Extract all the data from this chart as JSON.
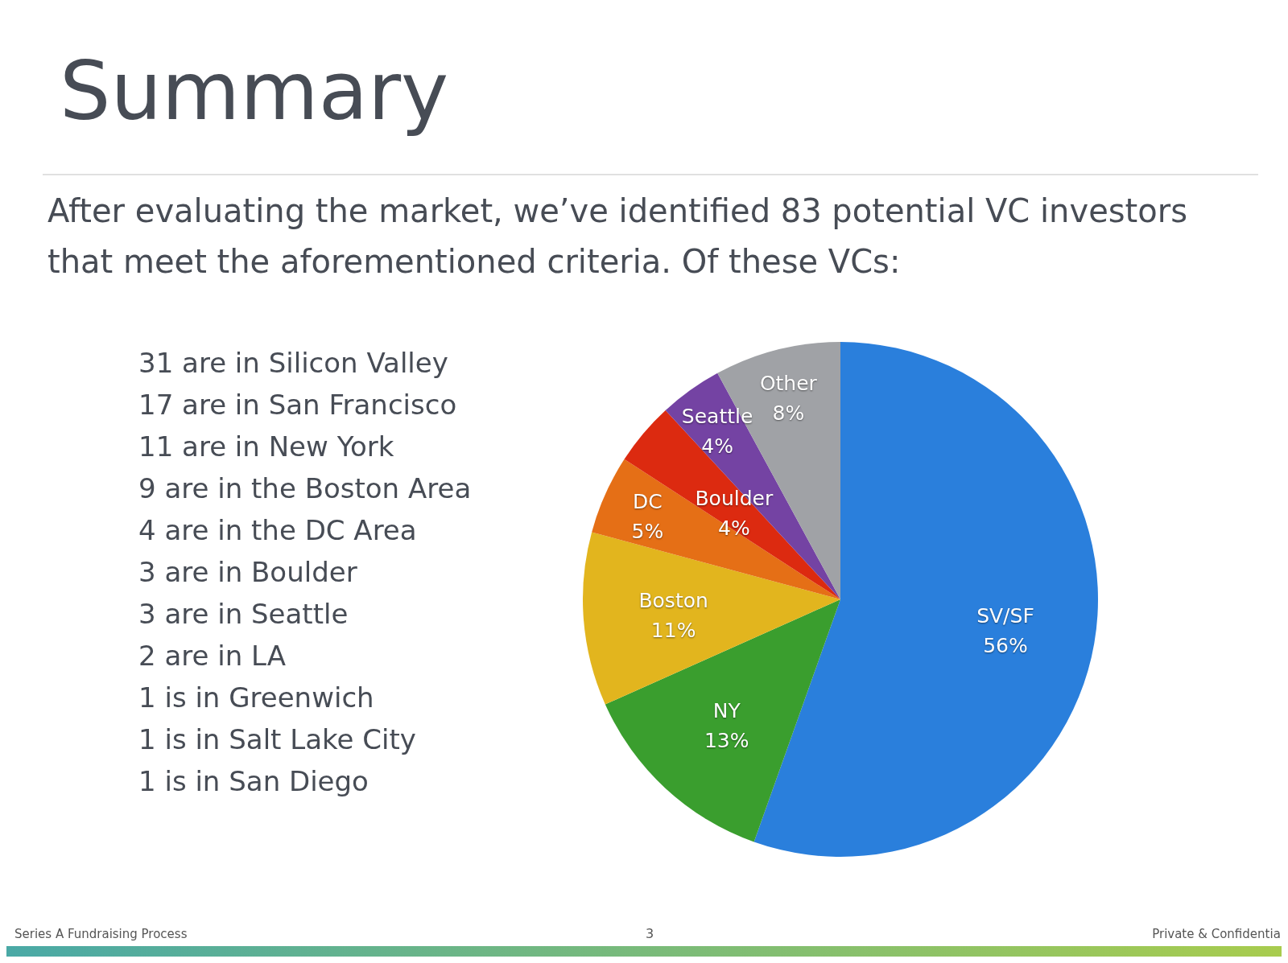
{
  "chart_data": {
    "type": "pie",
    "title": "Summary",
    "subtitle": "After evaluating the market, we’ve identified 83 potential VC investors that meet the aforementioned criteria.  Of these VCs:",
    "categories": [
      "SV/SF",
      "NY",
      "Boston",
      "DC",
      "Boulder",
      "Seattle",
      "Other"
    ],
    "values": [
      56,
      13,
      11,
      5,
      4,
      4,
      8
    ],
    "value_labels": [
      "56%",
      "13%",
      "11%",
      "5%",
      "4%",
      "4%",
      "8%"
    ],
    "colors": [
      "#2a7fdc",
      "#3a9e2e",
      "#e2b51e",
      "#e56f16",
      "#dc2a10",
      "#7443a3",
      "#a0a2a6"
    ],
    "annotations": [
      "31 are in Silicon Valley",
      "17 are in San Francisco",
      "11 are in New York",
      "9 are in the Boston Area",
      "4 are in the DC Area",
      "3 are in Boulder",
      "3 are in Seattle",
      "2 are in LA",
      "1 is in Greenwich",
      "1 is in Salt Lake City",
      "1 is in San Diego",
      "Series A Fundraising Process",
      "3",
      "Private & Confidential"
    ]
  }
}
